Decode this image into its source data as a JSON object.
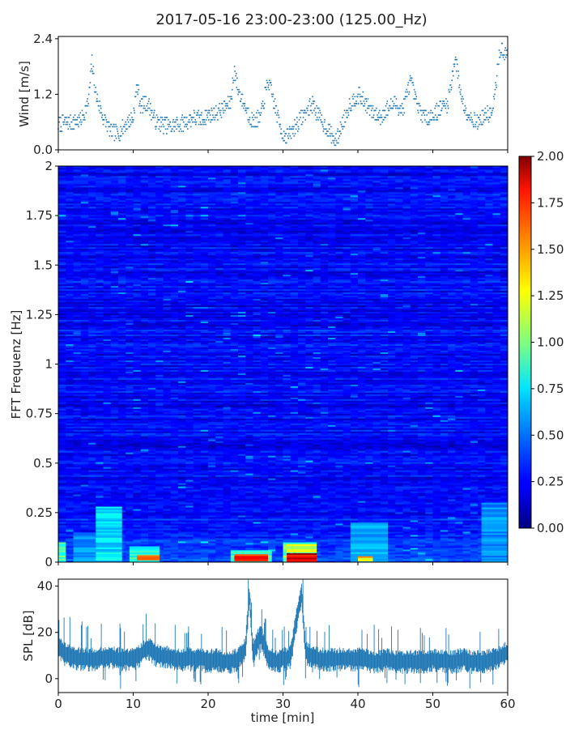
{
  "figure": {
    "title": "2017-05-16 23:00-23:00 (125.00_Hz)"
  },
  "colors": {
    "wind": "#1f77b4",
    "spl": "#1f77b4",
    "axis": "#000000",
    "colormap": "jet"
  },
  "chart_data": [
    {
      "type": "scatter",
      "role": "wind",
      "ylabel": "Wind [m/s]",
      "xlim": [
        0,
        60
      ],
      "ylim": [
        0,
        2.45
      ],
      "yticks": [
        "0.0",
        "1.2",
        "2.4"
      ],
      "xtick_values": [
        0,
        10,
        20,
        30,
        40,
        50,
        60
      ],
      "series": [
        {
          "x": [
            0,
            1,
            2,
            3,
            4,
            4.5,
            5,
            6,
            7,
            8,
            9,
            10,
            10.5,
            11,
            12,
            13,
            14,
            15,
            16,
            17,
            18,
            19,
            20,
            21,
            22,
            23,
            23.5,
            24,
            25,
            26,
            27,
            28,
            29,
            30,
            31,
            32,
            33,
            34,
            35,
            36,
            37,
            38,
            39,
            40,
            41,
            42,
            43,
            44,
            45,
            46,
            47,
            48,
            49,
            50,
            51,
            52,
            53,
            54,
            55,
            56,
            57,
            58,
            59,
            60
          ],
          "y": [
            0.55,
            0.6,
            0.6,
            0.65,
            1.0,
            1.9,
            1.2,
            0.7,
            0.4,
            0.35,
            0.55,
            0.7,
            1.4,
            0.95,
            1.0,
            0.6,
            0.55,
            0.5,
            0.55,
            0.6,
            0.7,
            0.65,
            0.75,
            0.8,
            0.9,
            1.0,
            1.75,
            1.3,
            0.9,
            0.6,
            0.7,
            1.5,
            0.9,
            0.3,
            0.35,
            0.6,
            0.8,
            1.0,
            0.65,
            0.45,
            0.15,
            0.6,
            1.0,
            1.2,
            1.0,
            0.8,
            0.7,
            0.9,
            1.0,
            0.85,
            1.5,
            0.9,
            0.7,
            0.75,
            0.9,
            1.0,
            2.0,
            1.0,
            0.7,
            0.6,
            0.75,
            0.8,
            2.2,
            2.0
          ]
        }
      ]
    },
    {
      "type": "heatmap",
      "role": "spectrogram",
      "ylabel": "FFT Frequenz [Hz]",
      "xlim": [
        0,
        60
      ],
      "ylim": [
        0,
        2
      ],
      "yticks": [
        "0",
        "0.25",
        "0.5",
        "0.75",
        "1",
        "1.25",
        "1.5",
        "1.75",
        "2"
      ],
      "colorbar": {
        "range": [
          0,
          2
        ],
        "ticks": [
          "0.00",
          "0.25",
          "0.50",
          "0.75",
          "1.00",
          "1.25",
          "1.50",
          "1.75",
          "2.00"
        ]
      },
      "background_level": 0.25,
      "patches": [
        {
          "t0": 0,
          "t1": 1,
          "f0": 0,
          "f1": 0.1,
          "value": 0.9
        },
        {
          "t0": 2,
          "t1": 5,
          "f0": 0,
          "f1": 0.15,
          "value": 0.55
        },
        {
          "t0": 5,
          "t1": 8.5,
          "f0": 0,
          "f1": 0.28,
          "value": 0.7
        },
        {
          "t0": 9.5,
          "t1": 13.5,
          "f0": 0,
          "f1": 0.08,
          "value": 0.85
        },
        {
          "t0": 10.5,
          "t1": 13.5,
          "f0": 0.01,
          "f1": 0.035,
          "value": 1.5
        },
        {
          "t0": 23,
          "t1": 28.5,
          "f0": 0,
          "f1": 0.06,
          "value": 0.9
        },
        {
          "t0": 23.5,
          "t1": 28,
          "f0": 0.005,
          "f1": 0.04,
          "value": 1.9
        },
        {
          "t0": 30,
          "t1": 34.5,
          "f0": 0,
          "f1": 0.1,
          "value": 1.0
        },
        {
          "t0": 30.5,
          "t1": 34.5,
          "f0": 0.05,
          "f1": 0.09,
          "value": 1.2
        },
        {
          "t0": 30.5,
          "t1": 34.5,
          "f0": 0,
          "f1": 0.045,
          "value": 2.0
        },
        {
          "t0": 39,
          "t1": 44,
          "f0": 0,
          "f1": 0.2,
          "value": 0.6
        },
        {
          "t0": 40,
          "t1": 42,
          "f0": 0.005,
          "f1": 0.03,
          "value": 1.3
        },
        {
          "t0": 56.5,
          "t1": 60,
          "f0": 0,
          "f1": 0.3,
          "value": 0.55
        }
      ]
    },
    {
      "type": "line",
      "role": "spl",
      "ylabel": "SPL [dB]",
      "xlabel": "time [min]",
      "xlim": [
        0,
        60
      ],
      "ylim": [
        -6,
        43
      ],
      "yticks": [
        "0",
        "20",
        "40"
      ],
      "xticks": [
        "0",
        "10",
        "20",
        "30",
        "40",
        "50",
        "60"
      ],
      "xtick_values": [
        0,
        10,
        20,
        30,
        40,
        50,
        60
      ],
      "series": [
        {
          "x": [
            0,
            1,
            2,
            3,
            4,
            5,
            6,
            7,
            8,
            9,
            10,
            11,
            12,
            13,
            14,
            15,
            16,
            17,
            18,
            19,
            20,
            21,
            22,
            23,
            24,
            25,
            25.5,
            26,
            27,
            28,
            29,
            30,
            31,
            32,
            32.5,
            33,
            34,
            35,
            36,
            37,
            38,
            39,
            40,
            41,
            42,
            43,
            44,
            45,
            46,
            47,
            48,
            49,
            50,
            51,
            52,
            53,
            54,
            55,
            56,
            57,
            58,
            59,
            60
          ],
          "y": [
            14,
            11,
            10,
            9,
            9,
            9,
            10,
            10,
            9,
            9,
            9,
            11,
            14,
            11,
            10,
            10,
            9,
            9,
            9,
            9,
            8,
            9,
            8,
            8,
            9,
            14,
            37,
            12,
            20,
            10,
            8,
            9,
            10,
            30,
            38,
            12,
            10,
            9,
            9,
            9,
            9,
            9,
            9,
            9,
            8,
            8,
            9,
            8,
            8,
            8,
            8,
            8,
            9,
            8,
            8,
            8,
            9,
            8,
            8,
            8,
            9,
            10,
            12
          ],
          "band": 5
        }
      ]
    }
  ]
}
